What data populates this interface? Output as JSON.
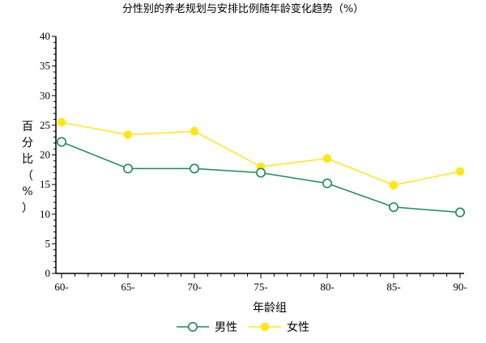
{
  "chart_data": {
    "type": "line",
    "title": "分性别的养老规划与安排比例随年龄变化趋势（%）",
    "xlabel": "年龄组",
    "ylabel": "百分比（%）",
    "categories": [
      "60-",
      "65-",
      "70-",
      "75-",
      "80-",
      "85-",
      "90-"
    ],
    "ylim": [
      0,
      40
    ],
    "yticks": [
      0,
      5,
      10,
      15,
      20,
      25,
      30,
      35,
      40
    ],
    "grid": false,
    "legend_position": "bottom",
    "series": [
      {
        "name": "男性",
        "values": [
          22.2,
          17.7,
          17.7,
          17.0,
          15.2,
          11.2,
          10.3
        ],
        "color": "#1a8a5a",
        "marker": "open-circle"
      },
      {
        "name": "女性",
        "values": [
          25.5,
          23.4,
          24.0,
          18.0,
          19.4,
          14.9,
          17.2
        ],
        "color": "#ffe619",
        "marker": "filled-circle"
      }
    ]
  }
}
